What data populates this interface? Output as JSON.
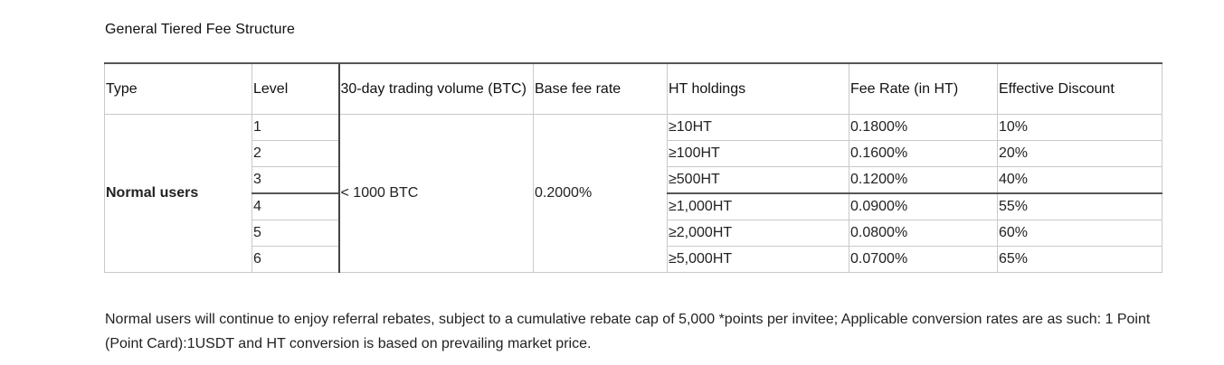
{
  "heading": "General Tiered Fee Structure",
  "table": {
    "headers": {
      "type": "Type",
      "level": "Level",
      "volume": "30-day trading volume (BTC)",
      "base_fee": "Base fee rate",
      "ht_holdings": "HT holdings",
      "fee_rate_ht": "Fee Rate (in HT)",
      "effective_discount": "Effective Discount"
    },
    "type_value": "Normal users",
    "volume_value": "< 1000 BTC",
    "base_fee_value": "0.2000%",
    "rows": [
      {
        "level": "1",
        "holdings": "≥10HT",
        "fee": "0.1800%",
        "discount": "10%"
      },
      {
        "level": "2",
        "holdings": "≥100HT",
        "fee": "0.1600%",
        "discount": "20%"
      },
      {
        "level": "3",
        "holdings": "≥500HT",
        "fee": "0.1200%",
        "discount": "40%"
      },
      {
        "level": "4",
        "holdings": "≥1,000HT",
        "fee": "0.0900%",
        "discount": "55%"
      },
      {
        "level": "5",
        "holdings": "≥2,000HT",
        "fee": "0.0800%",
        "discount": "60%"
      },
      {
        "level": "6",
        "holdings": "≥5,000HT",
        "fee": "0.0700%",
        "discount": "65%"
      }
    ]
  },
  "note": "Normal users will continue to enjoy referral rebates, subject to a cumulative rebate cap of 5,000 *points per invitee; Applicable conversion rates are as such: 1 Point (Point Card):1USDT and HT conversion is based on prevailing market price."
}
